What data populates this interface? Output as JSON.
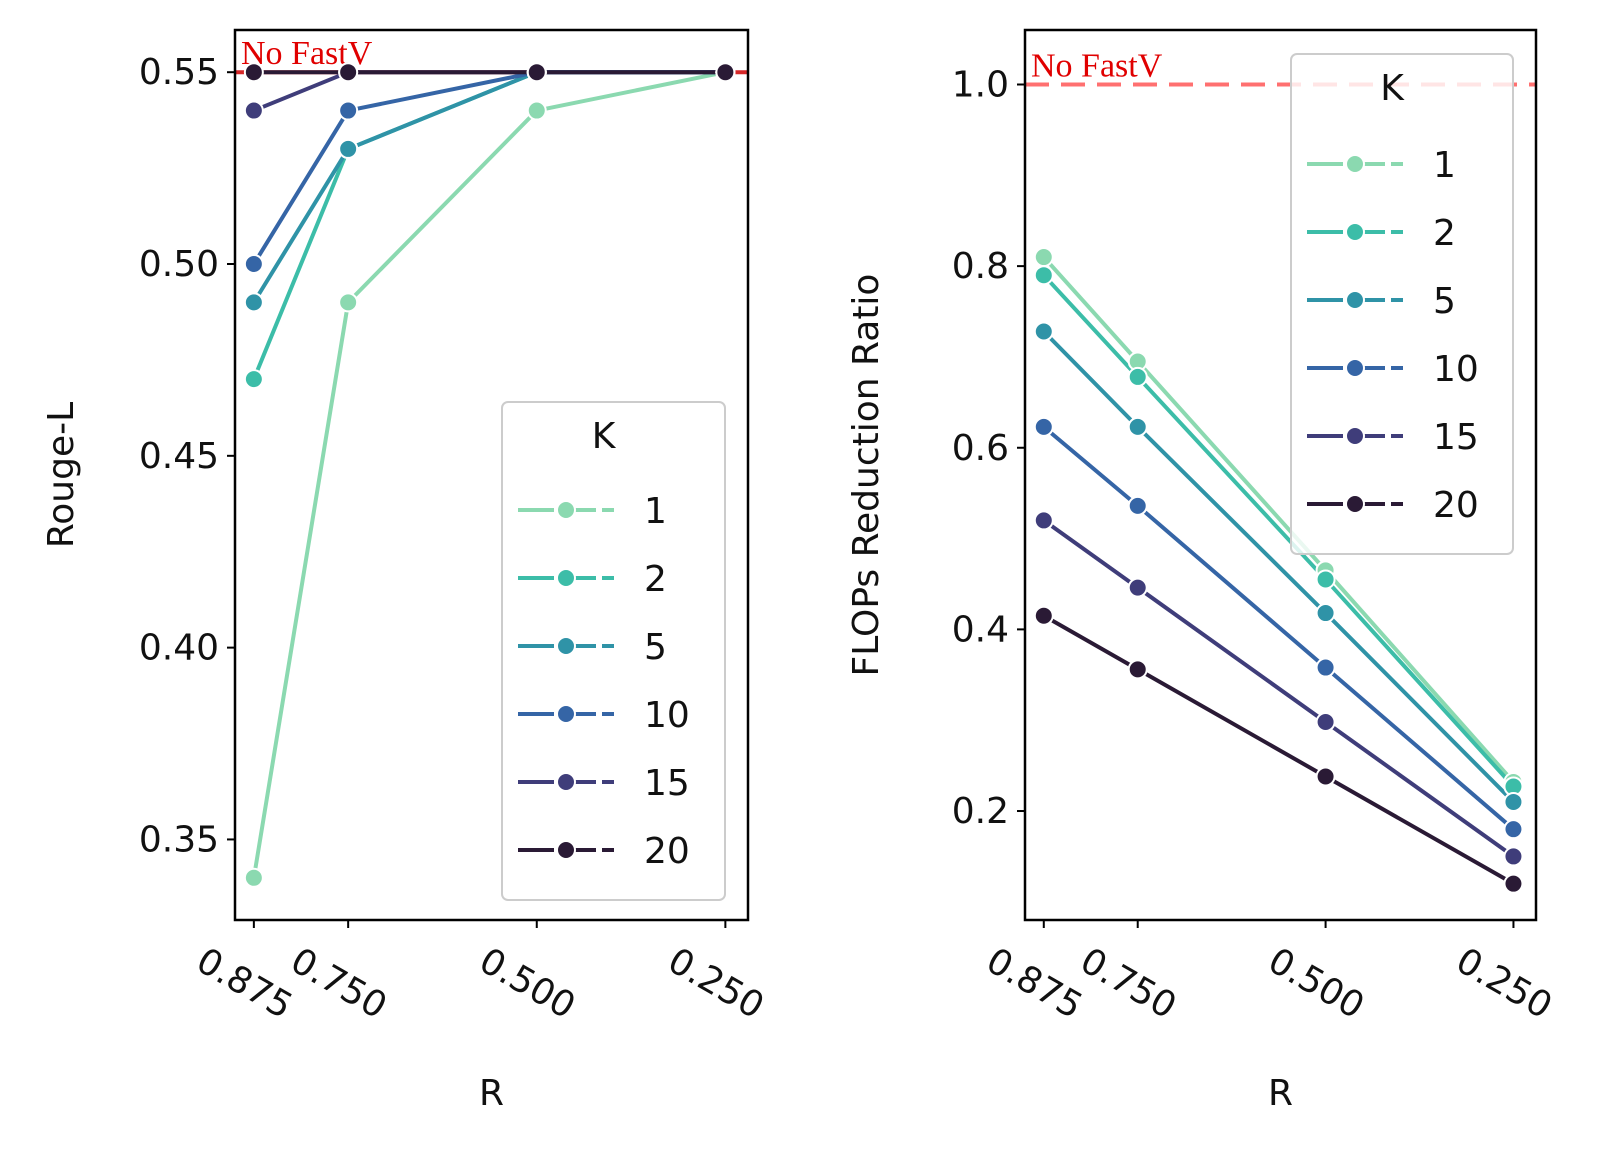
{
  "chart_data": [
    {
      "type": "line",
      "xlabel": "R",
      "ylabel": "Rouge-L",
      "categories": [
        "0.875",
        "0.750",
        "0.500",
        "0.250"
      ],
      "x": [
        0.875,
        0.75,
        0.5,
        0.25
      ],
      "xlim": [
        0.9,
        0.22
      ],
      "ylim": [
        0.329,
        0.561
      ],
      "yticks": [
        0.35,
        0.4,
        0.45,
        0.5,
        0.55
      ],
      "ytick_labels": [
        "0.35",
        "0.40",
        "0.45",
        "0.50",
        "0.55"
      ],
      "reference": {
        "value": 0.55,
        "label": "No FastV",
        "color": "#d62728"
      },
      "legend": {
        "title": "K",
        "position": "lower-right"
      },
      "series": [
        {
          "name": "1",
          "color": "#8bd9b0",
          "values": [
            0.34,
            0.49,
            0.54,
            0.55
          ]
        },
        {
          "name": "2",
          "color": "#3cbda8",
          "values": [
            0.47,
            0.53,
            0.55,
            0.55
          ]
        },
        {
          "name": "5",
          "color": "#2f93a7",
          "values": [
            0.49,
            0.53,
            0.55,
            0.55
          ]
        },
        {
          "name": "10",
          "color": "#3565a6",
          "values": [
            0.5,
            0.54,
            0.55,
            0.55
          ]
        },
        {
          "name": "15",
          "color": "#3f3d7a",
          "values": [
            0.54,
            0.55,
            0.55,
            0.55
          ]
        },
        {
          "name": "20",
          "color": "#2a1a35",
          "values": [
            0.55,
            0.55,
            0.55,
            0.55
          ]
        }
      ]
    },
    {
      "type": "line",
      "xlabel": "R",
      "ylabel": "FLOPs Reduction Ratio",
      "categories": [
        "0.875",
        "0.750",
        "0.500",
        "0.250"
      ],
      "x": [
        0.875,
        0.75,
        0.5,
        0.25
      ],
      "xlim": [
        0.9,
        0.22
      ],
      "ylim": [
        0.08,
        1.06
      ],
      "yticks": [
        0.2,
        0.4,
        0.6,
        0.8,
        1.0
      ],
      "ytick_labels": [
        "0.2",
        "0.4",
        "0.6",
        "0.8",
        "1.0"
      ],
      "reference": {
        "value": 1.0,
        "label": "No FastV",
        "color": "#ff7070"
      },
      "legend": {
        "title": "K",
        "position": "upper-right"
      },
      "series": [
        {
          "name": "1",
          "color": "#8bd9b0",
          "values": [
            0.81,
            0.695,
            0.465,
            0.232
          ]
        },
        {
          "name": "2",
          "color": "#3cbda8",
          "values": [
            0.79,
            0.678,
            0.455,
            0.227
          ]
        },
        {
          "name": "5",
          "color": "#2f93a7",
          "values": [
            0.728,
            0.623,
            0.418,
            0.21
          ]
        },
        {
          "name": "10",
          "color": "#3565a6",
          "values": [
            0.623,
            0.536,
            0.358,
            0.18
          ]
        },
        {
          "name": "15",
          "color": "#3f3d7a",
          "values": [
            0.52,
            0.446,
            0.298,
            0.15
          ]
        },
        {
          "name": "20",
          "color": "#2a1a35",
          "values": [
            0.415,
            0.356,
            0.238,
            0.12
          ]
        }
      ]
    }
  ]
}
